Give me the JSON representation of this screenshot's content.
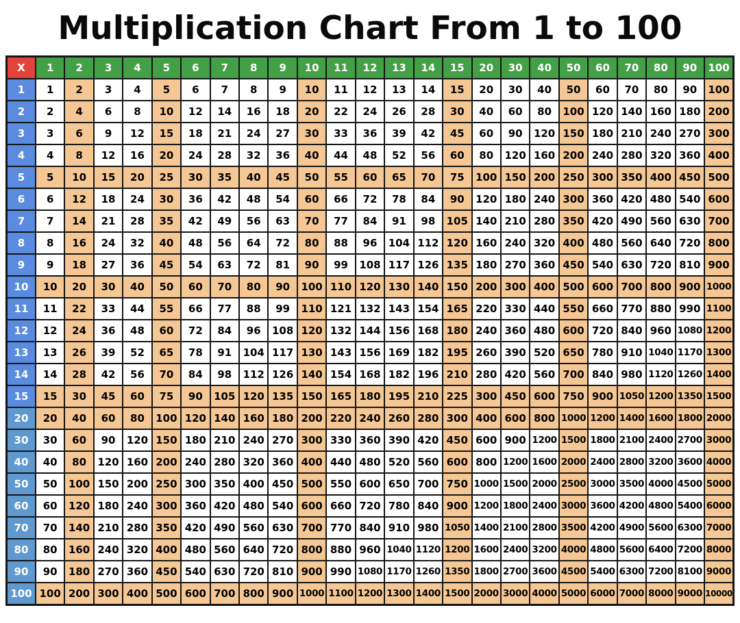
{
  "page": {
    "title": "Multiplication Chart From 1 to 100"
  },
  "colors": {
    "page_bg": "#ffffff",
    "title_color": "#0a0a0a",
    "grid_line": "#151515",
    "corner_bg": "#E2443B",
    "col_header_bg": "#43A047",
    "row_header_bg_small": "#5B8BDF",
    "row_header_bg_large": "#5F99CF",
    "highlight_bg": "#F5C795",
    "cell_bg": "#ffffff",
    "header_text": "#ffffff",
    "cell_text": "#000000"
  },
  "chart_data": {
    "type": "table",
    "title": "Multiplication Chart From 1 to 100",
    "corner_label": "X",
    "columns": [
      1,
      2,
      3,
      4,
      5,
      6,
      7,
      8,
      9,
      10,
      11,
      12,
      13,
      14,
      15,
      20,
      30,
      40,
      50,
      60,
      70,
      80,
      90,
      100
    ],
    "rows": [
      1,
      2,
      3,
      4,
      5,
      6,
      7,
      8,
      9,
      10,
      11,
      12,
      13,
      14,
      15,
      20,
      30,
      40,
      50,
      60,
      70,
      80,
      90,
      100
    ],
    "highlight_columns": [
      2,
      5,
      10,
      15,
      50,
      100
    ],
    "highlight_rows": [
      5,
      10,
      15,
      20,
      100
    ],
    "row_header_large_from": 20,
    "matrix": [
      [
        1,
        2,
        3,
        4,
        5,
        6,
        7,
        8,
        9,
        10,
        11,
        12,
        13,
        14,
        15,
        20,
        30,
        40,
        50,
        60,
        70,
        80,
        90,
        100
      ],
      [
        2,
        4,
        6,
        8,
        10,
        12,
        14,
        16,
        18,
        20,
        22,
        24,
        26,
        28,
        30,
        40,
        60,
        80,
        100,
        120,
        140,
        160,
        180,
        200
      ],
      [
        3,
        6,
        9,
        12,
        15,
        18,
        21,
        24,
        27,
        30,
        33,
        36,
        39,
        42,
        45,
        60,
        90,
        120,
        150,
        180,
        210,
        240,
        270,
        300
      ],
      [
        4,
        8,
        12,
        16,
        20,
        24,
        28,
        32,
        36,
        40,
        44,
        48,
        52,
        56,
        60,
        80,
        120,
        160,
        200,
        240,
        280,
        320,
        360,
        400
      ],
      [
        5,
        10,
        15,
        20,
        25,
        30,
        35,
        40,
        45,
        50,
        55,
        60,
        65,
        70,
        75,
        100,
        150,
        200,
        250,
        300,
        350,
        400,
        450,
        500
      ],
      [
        6,
        12,
        18,
        24,
        30,
        36,
        42,
        48,
        54,
        60,
        66,
        72,
        78,
        84,
        90,
        120,
        180,
        240,
        300,
        360,
        420,
        480,
        540,
        600
      ],
      [
        7,
        14,
        21,
        28,
        35,
        42,
        49,
        56,
        63,
        70,
        77,
        84,
        91,
        98,
        105,
        140,
        210,
        280,
        350,
        420,
        490,
        560,
        630,
        700
      ],
      [
        8,
        16,
        24,
        32,
        40,
        48,
        56,
        64,
        72,
        80,
        88,
        96,
        104,
        112,
        120,
        160,
        240,
        320,
        400,
        480,
        560,
        640,
        720,
        800
      ],
      [
        9,
        18,
        27,
        36,
        45,
        54,
        63,
        72,
        81,
        90,
        99,
        108,
        117,
        126,
        135,
        180,
        270,
        360,
        450,
        540,
        630,
        720,
        810,
        900
      ],
      [
        10,
        20,
        30,
        40,
        50,
        60,
        70,
        80,
        90,
        100,
        110,
        120,
        130,
        140,
        150,
        200,
        300,
        400,
        500,
        600,
        700,
        800,
        900,
        1000
      ],
      [
        11,
        22,
        33,
        44,
        55,
        66,
        77,
        88,
        99,
        110,
        121,
        132,
        143,
        154,
        165,
        220,
        330,
        440,
        550,
        660,
        770,
        880,
        990,
        1100
      ],
      [
        12,
        24,
        36,
        48,
        60,
        72,
        84,
        96,
        108,
        120,
        132,
        144,
        156,
        168,
        180,
        240,
        360,
        480,
        600,
        720,
        840,
        960,
        1080,
        1200
      ],
      [
        13,
        26,
        39,
        52,
        65,
        78,
        91,
        104,
        117,
        130,
        143,
        156,
        169,
        182,
        195,
        260,
        390,
        520,
        650,
        780,
        910,
        1040,
        1170,
        1300
      ],
      [
        14,
        28,
        42,
        56,
        70,
        84,
        98,
        112,
        126,
        140,
        154,
        168,
        182,
        196,
        210,
        280,
        420,
        560,
        700,
        840,
        980,
        1120,
        1260,
        1400
      ],
      [
        15,
        30,
        45,
        60,
        75,
        90,
        105,
        120,
        135,
        150,
        165,
        180,
        195,
        210,
        225,
        300,
        450,
        600,
        750,
        900,
        1050,
        1200,
        1350,
        1500
      ],
      [
        20,
        40,
        60,
        80,
        100,
        120,
        140,
        160,
        180,
        200,
        220,
        240,
        260,
        280,
        300,
        400,
        600,
        800,
        1000,
        1200,
        1400,
        1600,
        1800,
        2000
      ],
      [
        30,
        60,
        90,
        120,
        150,
        180,
        210,
        240,
        270,
        300,
        330,
        360,
        390,
        420,
        450,
        600,
        900,
        1200,
        1500,
        1800,
        2100,
        2400,
        2700,
        3000
      ],
      [
        40,
        80,
        120,
        160,
        200,
        240,
        280,
        320,
        360,
        400,
        440,
        480,
        520,
        560,
        600,
        800,
        1200,
        1600,
        2000,
        2400,
        2800,
        3200,
        3600,
        4000
      ],
      [
        50,
        100,
        150,
        200,
        250,
        300,
        350,
        400,
        450,
        500,
        550,
        600,
        650,
        700,
        750,
        1000,
        1500,
        2000,
        2500,
        3000,
        3500,
        4000,
        4500,
        5000
      ],
      [
        60,
        120,
        180,
        240,
        300,
        360,
        420,
        480,
        540,
        600,
        660,
        720,
        780,
        840,
        900,
        1200,
        1800,
        2400,
        3000,
        3600,
        4200,
        4800,
        5400,
        6000
      ],
      [
        70,
        140,
        210,
        280,
        350,
        420,
        490,
        560,
        630,
        700,
        770,
        840,
        910,
        980,
        1050,
        1400,
        2100,
        2800,
        3500,
        4200,
        4900,
        5600,
        6300,
        7000
      ],
      [
        80,
        160,
        240,
        320,
        400,
        480,
        560,
        640,
        720,
        800,
        880,
        960,
        1040,
        1120,
        1200,
        1600,
        2400,
        3200,
        4000,
        4800,
        5600,
        6400,
        7200,
        8000
      ],
      [
        90,
        180,
        270,
        360,
        450,
        540,
        630,
        720,
        810,
        900,
        990,
        1080,
        1170,
        1260,
        1350,
        1800,
        2700,
        3600,
        4500,
        5400,
        6300,
        7200,
        8100,
        9000
      ],
      [
        100,
        200,
        300,
        400,
        500,
        600,
        700,
        800,
        900,
        1000,
        1100,
        1200,
        1300,
        1400,
        1500,
        2000,
        3000,
        4000,
        5000,
        6000,
        7000,
        8000,
        9000,
        10000
      ]
    ]
  }
}
